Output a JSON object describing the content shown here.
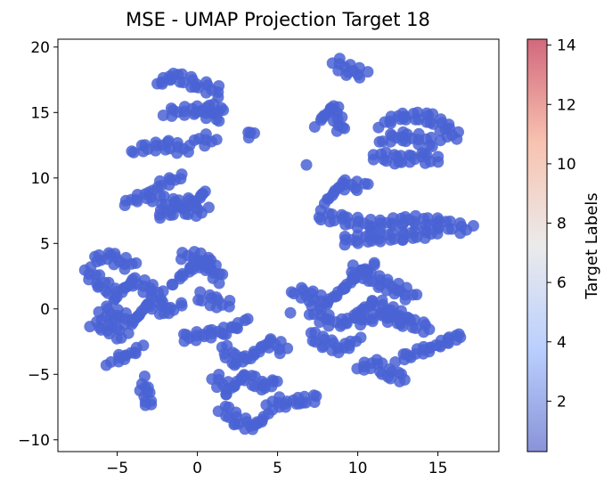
{
  "chart_data": {
    "type": "scatter",
    "title": "MSE - UMAP Projection Target 18",
    "xlabel": "",
    "ylabel": "",
    "xlim": [
      -8.7,
      18.8
    ],
    "ylim": [
      -10.9,
      20.6
    ],
    "xticks": [
      -5,
      0,
      5,
      10,
      15
    ],
    "yticks": [
      -10,
      -5,
      0,
      5,
      10,
      15,
      20
    ],
    "grid": false,
    "point_color": "#4a63d3",
    "colorbar": {
      "label": "Target Labels",
      "range": [
        0.3,
        14.2
      ],
      "ticks": [
        2,
        4,
        6,
        8,
        10,
        12,
        14
      ],
      "colormap": "coolwarm",
      "alpha": 0.6
    },
    "clusters": [
      {
        "x": [
          -2.5,
          -1.5,
          0,
          1.5
        ],
        "y": [
          17.2,
          17.8,
          17.2,
          16.5
        ]
      },
      {
        "x": [
          -2,
          0,
          1.5
        ],
        "y": [
          15,
          15.2,
          14.6
        ]
      },
      {
        "x": [
          0.5,
          1.5
        ],
        "y": [
          15.5,
          15.0
        ]
      },
      {
        "x": [
          0,
          1
        ],
        "y": [
          13.2,
          12.6
        ]
      },
      {
        "x": [
          -4,
          -2,
          -0.5
        ],
        "y": [
          12.2,
          12.5,
          12.1
        ]
      },
      {
        "x": [
          -4.5,
          -3,
          -1.5,
          0,
          0.5
        ],
        "y": [
          8.2,
          8.7,
          8.0,
          8.3,
          9.0
        ]
      },
      {
        "x": [
          -2.5,
          -1
        ],
        "y": [
          9.5,
          10.0
        ]
      },
      {
        "x": [
          -2.5,
          -1,
          0.5
        ],
        "y": [
          7.2,
          7.5,
          7.4
        ]
      },
      {
        "x": [
          3,
          3.6
        ],
        "y": [
          13.2,
          13.5
        ]
      },
      {
        "x": [
          6.8
        ],
        "y": [
          11.0
        ]
      },
      {
        "x": [
          8.5,
          9.5,
          10.5
        ],
        "y": [
          18.9,
          18.2,
          17.9
        ]
      },
      {
        "x": [
          7.5,
          8.5,
          9
        ],
        "y": [
          14.2,
          15.5,
          13.5
        ]
      },
      {
        "x": [
          11.5,
          13,
          14.5,
          15.5,
          16.2
        ],
        "y": [
          14.2,
          14.8,
          14.6,
          13.8,
          13.0
        ]
      },
      {
        "x": [
          11.5,
          13,
          15
        ],
        "y": [
          13,
          13.2,
          12.6
        ]
      },
      {
        "x": [
          11,
          12.5,
          14,
          15
        ],
        "y": [
          11.8,
          11.4,
          11.6,
          11.2
        ]
      },
      {
        "x": [
          8,
          9,
          10.5
        ],
        "y": [
          8.2,
          9.5,
          9.3
        ]
      },
      {
        "x": [
          7.5,
          9,
          11,
          13,
          15,
          17
        ],
        "y": [
          7.2,
          6.8,
          6.4,
          6.8,
          6.6,
          6.0
        ]
      },
      {
        "x": [
          9,
          11,
          13,
          15
        ],
        "y": [
          5.2,
          5.4,
          5.6,
          5.8
        ]
      },
      {
        "x": [
          -6.5,
          -5.5,
          -4
        ],
        "y": [
          3.8,
          4.0,
          3.2
        ]
      },
      {
        "x": [
          -7,
          -6,
          -5,
          -4,
          -3,
          -2
        ],
        "y": [
          3,
          2.0,
          1.0,
          2.2,
          1.5,
          0.8
        ]
      },
      {
        "x": [
          -6,
          -5,
          -4,
          -3,
          -2,
          -1
        ],
        "y": [
          0,
          -0.5,
          -1.0,
          0.5,
          -0.2,
          0.2
        ]
      },
      {
        "x": [
          -6.5,
          -5.5,
          -4.5
        ],
        "y": [
          -1,
          -1.5,
          -2.2
        ]
      },
      {
        "x": [
          -5.5,
          -4.5,
          -3.5
        ],
        "y": [
          -4,
          -3.6,
          -3.0
        ]
      },
      {
        "x": [
          -1.5,
          -0.5,
          0.5,
          1.5
        ],
        "y": [
          2,
          3.0,
          3.6,
          2.2
        ]
      },
      {
        "x": [
          -1,
          0,
          1
        ],
        "y": [
          4.2,
          3.9,
          3.2
        ]
      },
      {
        "x": [
          0,
          1,
          2
        ],
        "y": [
          1,
          0.6,
          0.2
        ]
      },
      {
        "x": [
          -3.5,
          -3.2,
          -3
        ],
        "y": [
          -5.5,
          -6.5,
          -7.5
        ]
      },
      {
        "x": [
          -1,
          0.5,
          2,
          3
        ],
        "y": [
          -2.2,
          -2.0,
          -1.6,
          -1.0
        ]
      },
      {
        "x": [
          1.5,
          2.5,
          3.5,
          4.5,
          5.5
        ],
        "y": [
          -3,
          -4.0,
          -3.5,
          -2.5,
          -3.2
        ]
      },
      {
        "x": [
          1,
          2,
          3,
          4,
          5
        ],
        "y": [
          -5.2,
          -6.2,
          -5.0,
          -6.0,
          -5.5
        ]
      },
      {
        "x": [
          1.5,
          2.5,
          3.5,
          4.5
        ],
        "y": [
          -7.5,
          -8.5,
          -9.0,
          -8.0
        ]
      },
      {
        "x": [
          4.5,
          5.5,
          6.5,
          7.5
        ],
        "y": [
          -7,
          -7.2,
          -7.0,
          -6.8
        ]
      },
      {
        "x": [
          6,
          7,
          8,
          9,
          10,
          11
        ],
        "y": [
          1.5,
          1.0,
          0.4,
          1.4,
          2.6,
          3.3
        ]
      },
      {
        "x": [
          5.8
        ],
        "y": [
          -0.3
        ]
      },
      {
        "x": [
          7,
          8,
          9,
          10,
          11,
          12,
          13
        ],
        "y": [
          0,
          -0.8,
          -1.2,
          -0.4,
          0.6,
          -0.2,
          -0.8
        ]
      },
      {
        "x": [
          9.5,
          10.5,
          11.5,
          12.5,
          13.5
        ],
        "y": [
          3,
          2.6,
          2.0,
          1.5,
          0.8
        ]
      },
      {
        "x": [
          10,
          11.5,
          13,
          14.5
        ],
        "y": [
          -1,
          -0.5,
          -1.0,
          -1.5
        ]
      },
      {
        "x": [
          7,
          8,
          9,
          10
        ],
        "y": [
          -2,
          -2.6,
          -3.0,
          -2.5
        ]
      },
      {
        "x": [
          10,
          11,
          12,
          13
        ],
        "y": [
          -4.5,
          -4.2,
          -5.0,
          -5.3
        ]
      },
      {
        "x": [
          12.5,
          13.5,
          14.5,
          15.5,
          16.5
        ],
        "y": [
          -3.8,
          -3.4,
          -3.0,
          -2.5,
          -2.0
        ]
      }
    ]
  }
}
